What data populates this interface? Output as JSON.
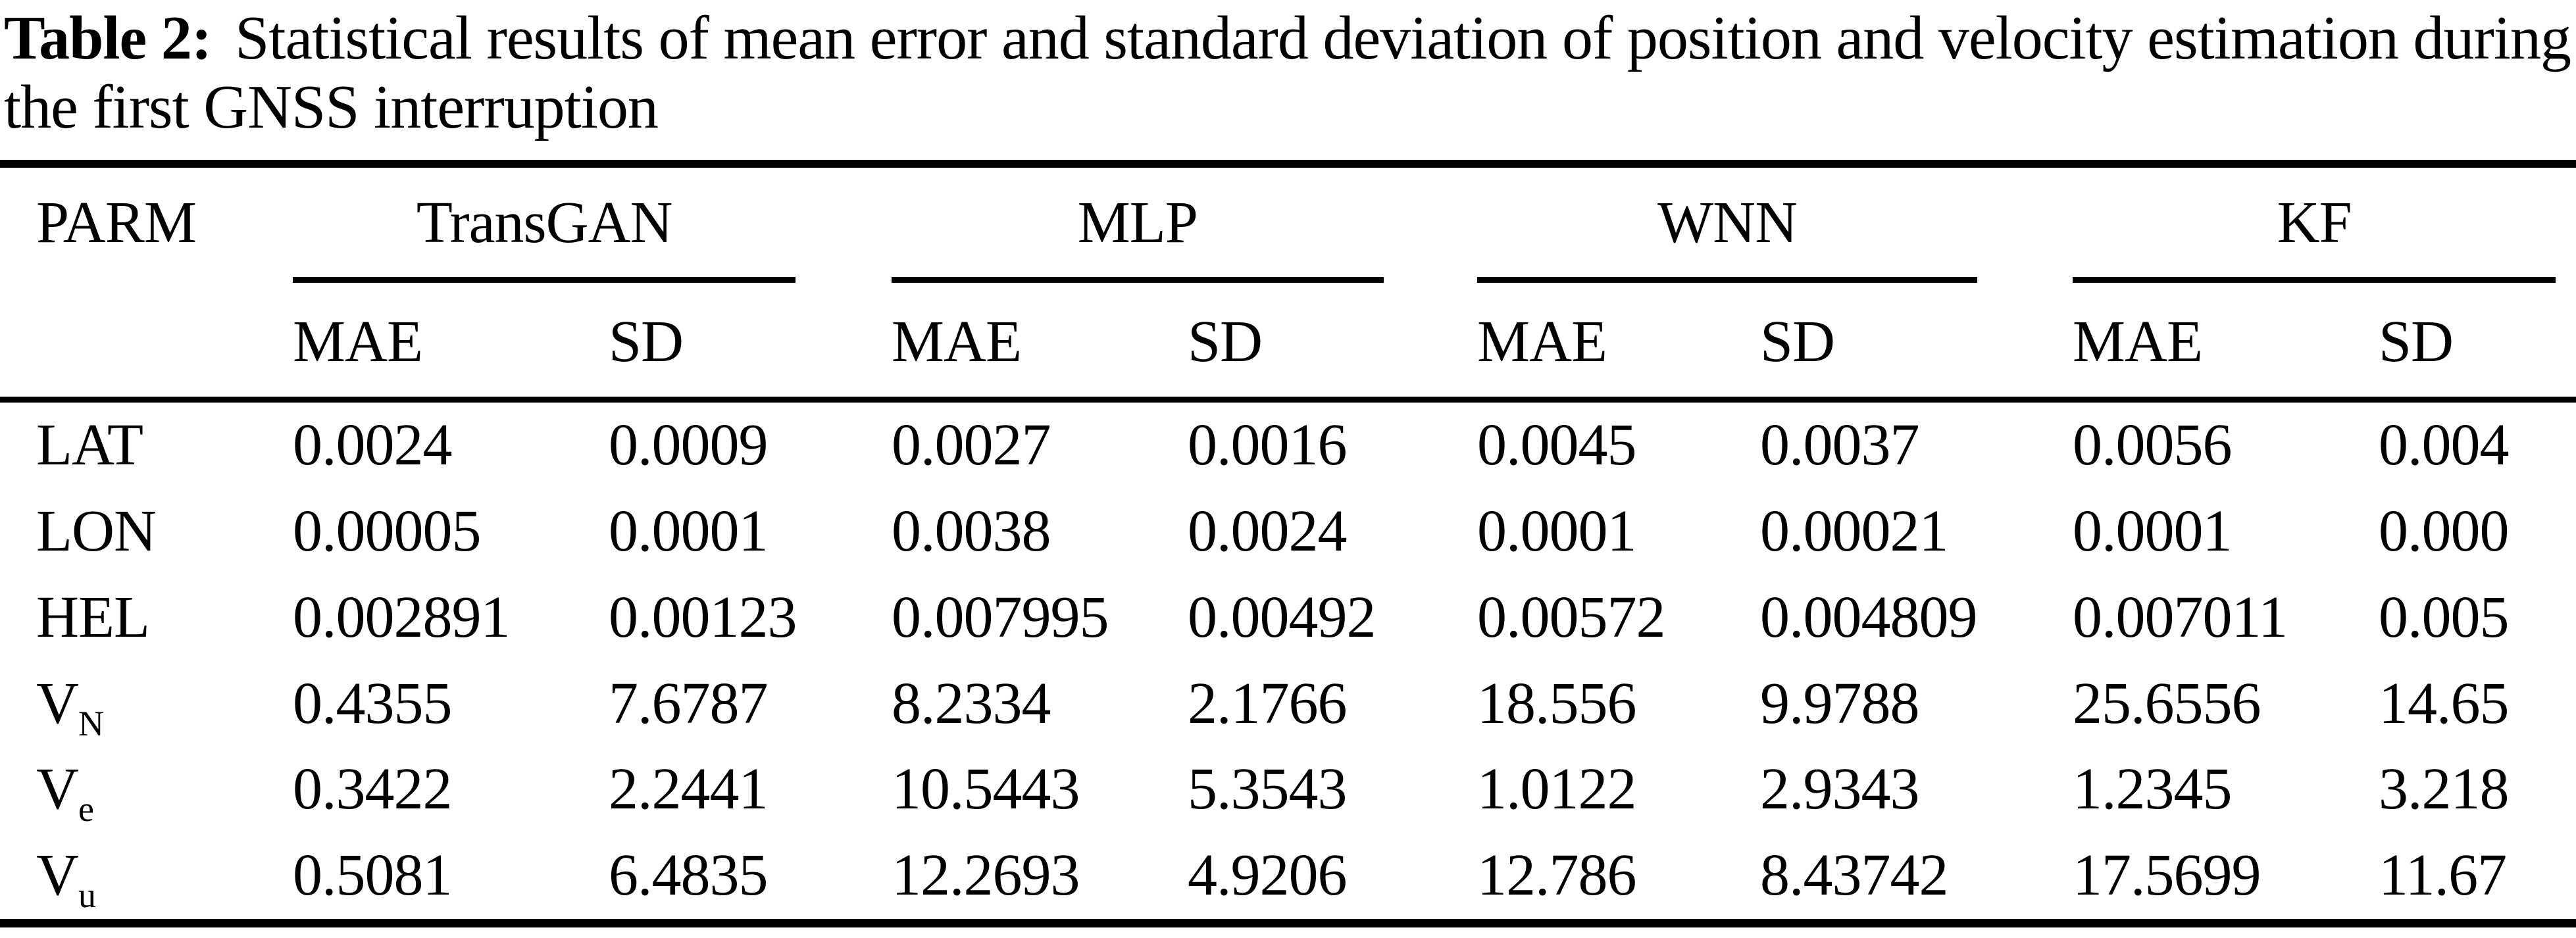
{
  "caption": {
    "label": "Table 2:",
    "text": "Statistical results of mean error and standard deviation of position and velocity estimation during the first GNSS interruption"
  },
  "table": {
    "parm_header": "PARM",
    "groups": [
      {
        "name": "TransGAN"
      },
      {
        "name": "MLP"
      },
      {
        "name": "WNN"
      },
      {
        "name": "KF"
      }
    ],
    "sub": {
      "mae": "MAE",
      "sd": "SD"
    },
    "rows": [
      {
        "param": "LAT",
        "param_sub": "",
        "values": [
          "0.0024",
          "0.0009",
          "0.0027",
          "0.0016",
          "0.0045",
          "0.0037",
          "0.0056",
          "0.004"
        ]
      },
      {
        "param": "LON",
        "param_sub": "",
        "values": [
          "0.00005",
          "0.0001",
          "0.0038",
          "0.0024",
          "0.0001",
          "0.00021",
          "0.0001",
          "0.000"
        ]
      },
      {
        "param": "HEL",
        "param_sub": "",
        "values": [
          "0.002891",
          "0.00123",
          "0.007995",
          "0.00492",
          "0.00572",
          "0.004809",
          "0.007011",
          "0.005"
        ]
      },
      {
        "param": "V",
        "param_sub": "N",
        "values": [
          "0.4355",
          "7.6787",
          "8.2334",
          "2.1766",
          "18.556",
          "9.9788",
          "25.6556",
          "14.65"
        ]
      },
      {
        "param": "V",
        "param_sub": "e",
        "values": [
          "0.3422",
          "2.2441",
          "10.5443",
          "5.3543",
          "1.0122",
          "2.9343",
          "1.2345",
          "3.218"
        ]
      },
      {
        "param": "V",
        "param_sub": "u",
        "values": [
          "0.5081",
          "6.4835",
          "12.2693",
          "4.9206",
          "12.786",
          "8.43742",
          "17.5699",
          "11.67"
        ]
      }
    ]
  }
}
